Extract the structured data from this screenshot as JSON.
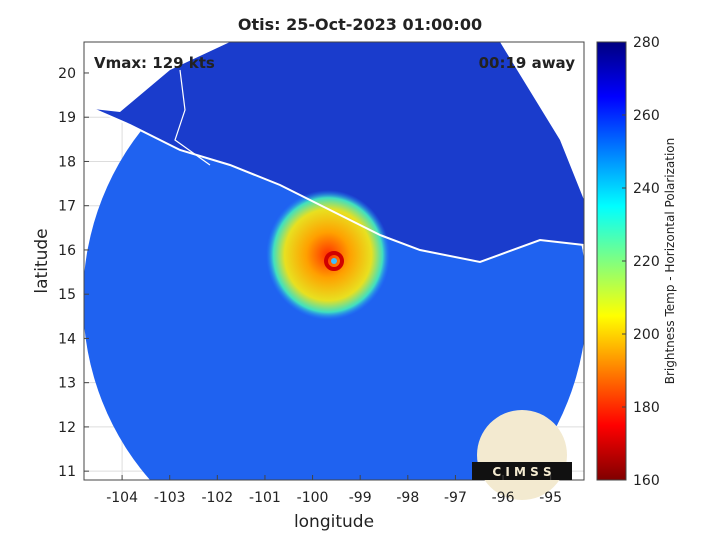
{
  "title": "Otis: 25-Oct-2023 01:00:00",
  "annotations": {
    "vmax": "Vmax: 129 kts",
    "away": "00:19 away"
  },
  "axes": {
    "xlabel": "longitude",
    "ylabel": "latitude",
    "xlim": [
      -104.8,
      -94.3
    ],
    "ylim": [
      10.8,
      20.7
    ],
    "xticks": [
      -104,
      -103,
      -102,
      -101,
      -100,
      -99,
      -98,
      -97,
      -96,
      -95
    ],
    "yticks": [
      11,
      12,
      13,
      14,
      15,
      16,
      17,
      18,
      19,
      20
    ]
  },
  "colorbar": {
    "label": "Brightness Temp - Horizontal Polarization",
    "lim": [
      160,
      280
    ],
    "ticks": [
      160,
      180,
      200,
      220,
      240,
      260,
      280
    ]
  },
  "logo": "C I M S S"
}
